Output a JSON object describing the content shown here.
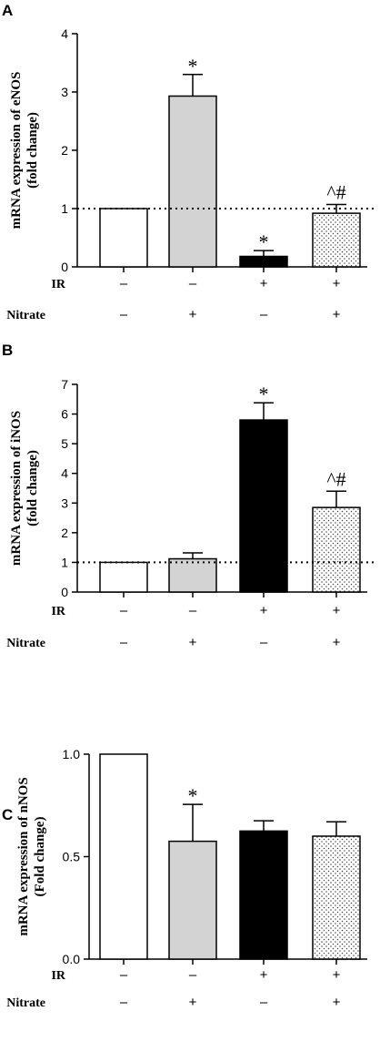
{
  "chart_data": [
    {
      "type": "bar",
      "panel": "A",
      "ylabel": "mRNA expression of eNOS",
      "ylabel2": "(fold change)",
      "ylim": [
        0,
        4
      ],
      "yticks": [
        "0",
        "1",
        "2",
        "3",
        "4"
      ],
      "values": [
        1.0,
        2.93,
        0.18,
        0.92
      ],
      "errors": [
        0,
        0.37,
        0.1,
        0.15
      ],
      "fills": [
        "white",
        "#d3d3d3",
        "black",
        "dots"
      ],
      "annotations": [
        "",
        "*",
        "*",
        "^#"
      ],
      "reference_line": 1,
      "conditions": [
        {
          "label": "IR",
          "marks": [
            "–",
            "–",
            "+",
            "+"
          ]
        },
        {
          "label": "Nitrate",
          "marks": [
            "–",
            "+",
            "–",
            "+"
          ]
        }
      ]
    },
    {
      "type": "bar",
      "panel": "B",
      "ylabel": "mRNA expression of iNOS",
      "ylabel2": "(fold change)",
      "ylim": [
        0,
        7
      ],
      "yticks": [
        "0",
        "1",
        "2",
        "3",
        "4",
        "5",
        "6",
        "7"
      ],
      "values": [
        1.0,
        1.12,
        5.8,
        2.85
      ],
      "errors": [
        0,
        0.2,
        0.58,
        0.55
      ],
      "fills": [
        "white",
        "#d3d3d3",
        "black",
        "dots"
      ],
      "annotations": [
        "",
        "",
        "*",
        "^#"
      ],
      "reference_line": 1,
      "conditions": [
        {
          "label": "IR",
          "marks": [
            "–",
            "–",
            "+",
            "+"
          ]
        },
        {
          "label": "Nitrate",
          "marks": [
            "–",
            "+",
            "–",
            "+"
          ]
        }
      ]
    },
    {
      "type": "bar",
      "panel": "C",
      "ylabel": "mRNA expression of nNOS",
      "ylabel2": "(Fold change)",
      "ylim": [
        0,
        1
      ],
      "yticks": [
        "0.0",
        "0.5",
        "1.0"
      ],
      "values": [
        1.0,
        0.575,
        0.625,
        0.6
      ],
      "errors": [
        0,
        0.18,
        0.05,
        0.07
      ],
      "fills": [
        "white",
        "#d3d3d3",
        "black",
        "dots"
      ],
      "annotations": [
        "",
        "*",
        "",
        ""
      ],
      "reference_line": null,
      "conditions": [
        {
          "label": "IR",
          "marks": [
            "–",
            "–",
            "+",
            "+"
          ]
        },
        {
          "label": "Nitrate",
          "marks": [
            "–",
            "+",
            "–",
            "+"
          ]
        }
      ]
    }
  ]
}
